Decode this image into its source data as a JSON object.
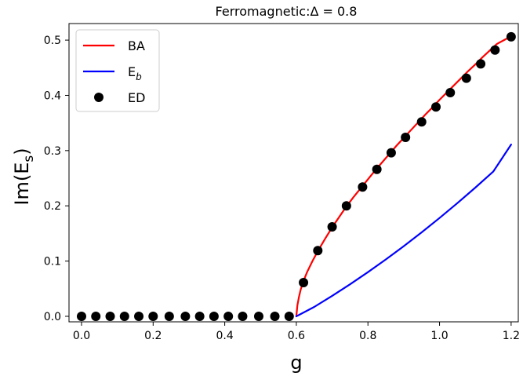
{
  "chart_data": {
    "type": "line",
    "title": {
      "prefix": "Ferromagnetic:",
      "greek": "Δ",
      "suffix": " = 0.8"
    },
    "xlabel": "g",
    "ylabel": {
      "base": "Im(E",
      "sub": "s",
      "end": ")"
    },
    "xlim": [
      -0.035,
      1.22
    ],
    "ylim": [
      -0.01,
      0.53
    ],
    "xticks": [
      0.0,
      0.2,
      0.4,
      0.6,
      0.8,
      1.0,
      1.2
    ],
    "xtick_labels": [
      "0.0",
      "0.2",
      "0.4",
      "0.6",
      "0.8",
      "1.0",
      "1.2"
    ],
    "yticks": [
      0.0,
      0.1,
      0.2,
      0.3,
      0.4,
      0.5
    ],
    "ytick_labels": [
      "0.0",
      "0.1",
      "0.2",
      "0.3",
      "0.4",
      "0.5"
    ],
    "grid": false,
    "legend_position": "top-left",
    "series": [
      {
        "name": "BA",
        "type": "line",
        "color": "#ff0000",
        "x": [
          0.6,
          0.603,
          0.607,
          0.612,
          0.62,
          0.63,
          0.645,
          0.66,
          0.68,
          0.7,
          0.72,
          0.74,
          0.76,
          0.78,
          0.8,
          0.82,
          0.84,
          0.86,
          0.88,
          0.9,
          0.92,
          0.94,
          0.96,
          0.98,
          1.0,
          1.02,
          1.04,
          1.06,
          1.08,
          1.1,
          1.12,
          1.14,
          1.16,
          1.18,
          1.2
        ],
        "y": [
          0.0,
          0.02,
          0.034,
          0.048,
          0.064,
          0.08,
          0.1,
          0.118,
          0.14,
          0.161,
          0.18,
          0.199,
          0.216,
          0.232,
          0.248,
          0.264,
          0.279,
          0.294,
          0.309,
          0.323,
          0.337,
          0.351,
          0.365,
          0.378,
          0.392,
          0.405,
          0.418,
          0.431,
          0.444,
          0.456,
          0.469,
          0.481,
          0.493,
          0.5,
          0.507
        ]
      },
      {
        "name": "E_b",
        "name_base": "E",
        "name_sub": "b",
        "type": "line",
        "color": "#0000ff",
        "x": [
          0.6,
          0.65,
          0.7,
          0.75,
          0.8,
          0.85,
          0.9,
          0.95,
          1.0,
          1.05,
          1.1,
          1.15,
          1.2
        ],
        "y": [
          0.0,
          0.017,
          0.037,
          0.058,
          0.08,
          0.103,
          0.127,
          0.152,
          0.178,
          0.205,
          0.233,
          0.262,
          0.311
        ]
      },
      {
        "name": "ED",
        "type": "scatter",
        "color": "#000000",
        "x": [
          0.0,
          0.04,
          0.08,
          0.12,
          0.16,
          0.2,
          0.245,
          0.29,
          0.33,
          0.37,
          0.41,
          0.45,
          0.495,
          0.54,
          0.58,
          0.62,
          0.66,
          0.7,
          0.74,
          0.785,
          0.825,
          0.865,
          0.905,
          0.95,
          0.99,
          1.03,
          1.075,
          1.115,
          1.155,
          1.2
        ],
        "y": [
          0.0,
          0.0,
          0.0,
          0.0,
          0.0,
          0.0,
          0.0,
          0.0,
          0.0,
          0.0,
          0.0,
          0.0,
          0.0,
          0.0,
          0.0,
          0.061,
          0.119,
          0.162,
          0.2,
          0.234,
          0.266,
          0.296,
          0.324,
          0.352,
          0.379,
          0.405,
          0.431,
          0.457,
          0.482,
          0.506
        ]
      }
    ]
  }
}
